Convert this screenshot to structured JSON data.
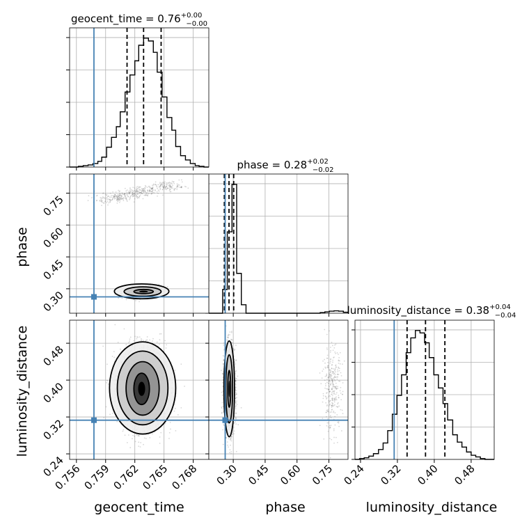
{
  "chart_data": {
    "type": "corner",
    "parameters": [
      "geocent_time",
      "phase",
      "luminosity_distance"
    ],
    "truth": {
      "geocent_time": 0.7578,
      "phase": 0.262,
      "luminosity_distance": 0.313
    },
    "colors": {
      "truth": "#4682b4",
      "hist": "#000000",
      "grid": "#b0b0b0",
      "samples": "#6f6f6f"
    },
    "grid": true,
    "titles": [
      {
        "param": "geocent_time",
        "text": "geocent_time = 0.76",
        "plus": "+0.00",
        "minus": "−0.00"
      },
      {
        "param": "phase",
        "text": "phase = 0.28",
        "plus": "+0.02",
        "minus": "−0.02"
      },
      {
        "param": "luminosity_distance",
        "text": "luminosity_distance = 0.38",
        "plus": "+0.04",
        "minus": "−0.04"
      }
    ],
    "axes": {
      "geocent_time": {
        "label": "geocent_time",
        "range": [
          0.7553,
          0.7696
        ],
        "ticks": [
          0.756,
          0.759,
          0.762,
          0.765,
          0.768
        ],
        "tick_labels": [
          "0.756",
          "0.759",
          "0.762",
          "0.765",
          "0.768"
        ]
      },
      "phase": {
        "label": "phase",
        "range": [
          0.185,
          0.84
        ],
        "ticks": [
          0.3,
          0.45,
          0.6,
          0.75
        ],
        "tick_labels": [
          "0.30",
          "0.45",
          "0.60",
          "0.75"
        ]
      },
      "luminosity_distance": {
        "label": "luminosity_distance",
        "range": [
          0.228,
          0.53
        ],
        "ticks": [
          0.24,
          0.32,
          0.4,
          0.48
        ],
        "tick_labels": [
          "0.24",
          "0.32",
          "0.40",
          "0.48"
        ]
      }
    },
    "histograms": {
      "geocent_time": {
        "bins": [
          0.7553,
          0.7558,
          0.7562,
          0.7567,
          0.7572,
          0.7577,
          0.7582,
          0.7586,
          0.7591,
          0.7596,
          0.7601,
          0.7605,
          0.761,
          0.7615,
          0.762,
          0.7624,
          0.7629,
          0.7634,
          0.7639,
          0.7643,
          0.7648,
          0.7653,
          0.7658,
          0.7662,
          0.7667,
          0.7672,
          0.7677,
          0.7682,
          0.7686,
          0.7691,
          0.7696
        ],
        "counts": [
          0,
          0,
          1,
          2,
          3,
          5,
          8,
          14,
          28,
          42,
          57,
          78,
          106,
          130,
          150,
          172,
          182,
          178,
          162,
          134,
          99,
          70,
          52,
          29,
          16,
          10,
          5,
          2,
          1,
          0
        ],
        "quantiles": [
          0.7612,
          0.7629,
          0.7647
        ]
      },
      "phase": {
        "bins": [
          0.185,
          0.207,
          0.229,
          0.25,
          0.272,
          0.294,
          0.316,
          0.338,
          0.36,
          0.382,
          0.403,
          0.425,
          0.447,
          0.469,
          0.491,
          0.513,
          0.534,
          0.556,
          0.578,
          0.6,
          0.622,
          0.643,
          0.665,
          0.687,
          0.709,
          0.731,
          0.752,
          0.774,
          0.796,
          0.818,
          0.84
        ],
        "counts": [
          0,
          0,
          0,
          140,
          480,
          760,
          235,
          50,
          0,
          0,
          0,
          0,
          0,
          0,
          0,
          0,
          0,
          0,
          0,
          0,
          0,
          0,
          0,
          0,
          4,
          8,
          12,
          14,
          12,
          6
        ],
        "quantiles": [
          0.258,
          0.28,
          0.302
        ]
      },
      "luminosity_distance": {
        "bins": [
          0.228,
          0.238,
          0.248,
          0.258,
          0.268,
          0.279,
          0.289,
          0.299,
          0.309,
          0.319,
          0.329,
          0.339,
          0.349,
          0.359,
          0.369,
          0.379,
          0.389,
          0.399,
          0.409,
          0.419,
          0.429,
          0.44,
          0.45,
          0.46,
          0.47,
          0.48,
          0.49,
          0.5,
          0.51,
          0.52,
          0.53
        ],
        "counts": [
          0,
          1,
          2,
          4,
          7,
          12,
          20,
          35,
          55,
          78,
          103,
          130,
          148,
          157,
          154,
          142,
          124,
          103,
          87,
          68,
          48,
          30,
          21,
          15,
          9,
          5,
          3,
          1,
          0,
          0
        ],
        "quantiles": [
          0.341,
          0.381,
          0.423
        ]
      }
    },
    "scatter_2d": [
      {
        "x": "geocent_time",
        "y": "phase",
        "components": [
          {
            "kind": "gauss",
            "n": 1700,
            "mx": 0.7629,
            "my": 0.287,
            "sx": 0.00078,
            "sy": 0.012,
            "rho": 0.35
          },
          {
            "kind": "line",
            "n": 450,
            "x0": 0.7588,
            "y0": 0.715,
            "x1": 0.7662,
            "y1": 0.795,
            "jx": 0.0008,
            "jy": 0.012
          }
        ],
        "contours": [
          {
            "mx": 0.7629,
            "my": 0.287,
            "rx": 0.001,
            "ry": 0.01
          },
          {
            "mx": 0.7628,
            "my": 0.287,
            "rx": 0.0019,
            "ry": 0.022
          },
          {
            "mx": 0.7627,
            "my": 0.288,
            "rx": 0.0028,
            "ry": 0.035
          }
        ]
      },
      {
        "x": "geocent_time",
        "y": "luminosity_distance",
        "components": [
          {
            "kind": "gauss",
            "n": 2600,
            "mx": 0.7628,
            "my": 0.383,
            "sx": 0.0012,
            "sy": 0.043,
            "rho": 0.0
          }
        ],
        "contours": [
          {
            "mx": 0.7627,
            "my": 0.381,
            "rx": 0.0008,
            "ry": 0.034
          },
          {
            "mx": 0.7628,
            "my": 0.382,
            "rx": 0.0017,
            "ry": 0.058
          },
          {
            "mx": 0.7628,
            "my": 0.383,
            "rx": 0.0026,
            "ry": 0.08
          },
          {
            "mx": 0.7628,
            "my": 0.383,
            "rx": 0.0034,
            "ry": 0.1
          }
        ]
      },
      {
        "x": "phase",
        "y": "luminosity_distance",
        "components": [
          {
            "kind": "gauss",
            "n": 1800,
            "mx": 0.282,
            "my": 0.381,
            "sx": 0.013,
            "sy": 0.045,
            "rho": 0.0
          },
          {
            "kind": "gauss",
            "n": 320,
            "mx": 0.765,
            "my": 0.381,
            "sx": 0.024,
            "sy": 0.045,
            "rho": 0.0
          }
        ],
        "contours": [
          {
            "mx": 0.281,
            "my": 0.381,
            "rx": 0.007,
            "ry": 0.04
          },
          {
            "mx": 0.281,
            "my": 0.381,
            "rx": 0.016,
            "ry": 0.074
          },
          {
            "mx": 0.281,
            "my": 0.381,
            "rx": 0.025,
            "ry": 0.104
          }
        ]
      }
    ]
  }
}
